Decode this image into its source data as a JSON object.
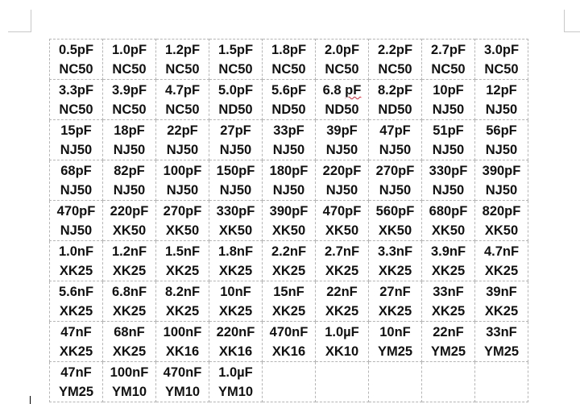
{
  "table": {
    "rows": [
      [
        [
          "0.5pF",
          "NC50"
        ],
        [
          "1.0pF",
          "NC50"
        ],
        [
          "1.2pF",
          "NC50"
        ],
        [
          "1.5pF",
          "NC50"
        ],
        [
          "1.8pF",
          "NC50"
        ],
        [
          "2.0pF",
          "NC50"
        ],
        [
          "2.2pF",
          "NC50"
        ],
        [
          "2.7pF",
          "NC50"
        ],
        [
          "3.0pF",
          "NC50"
        ]
      ],
      [
        [
          "3.3pF",
          "NC50"
        ],
        [
          "3.9pF",
          "NC50"
        ],
        [
          "4.7pF",
          "NC50"
        ],
        [
          "5.0pF",
          "ND50"
        ],
        [
          "5.6pF",
          "ND50"
        ],
        [
          "6.8 pF",
          "ND50"
        ],
        [
          "8.2pF",
          "ND50"
        ],
        [
          "10pF",
          "NJ50"
        ],
        [
          "12pF",
          "NJ50"
        ]
      ],
      [
        [
          "15pF",
          "NJ50"
        ],
        [
          "18pF",
          "NJ50"
        ],
        [
          "22pF",
          "NJ50"
        ],
        [
          "27pF",
          "NJ50"
        ],
        [
          "33pF",
          "NJ50"
        ],
        [
          "39pF",
          "NJ50"
        ],
        [
          "47pF",
          "NJ50"
        ],
        [
          "51pF",
          "NJ50"
        ],
        [
          "56pF",
          "NJ50"
        ]
      ],
      [
        [
          "68pF",
          "NJ50"
        ],
        [
          "82pF",
          "NJ50"
        ],
        [
          "100pF",
          "NJ50"
        ],
        [
          "150pF",
          "NJ50"
        ],
        [
          "180pF",
          "NJ50"
        ],
        [
          "220pF",
          "NJ50"
        ],
        [
          "270pF",
          "NJ50"
        ],
        [
          "330pF",
          "NJ50"
        ],
        [
          "390pF",
          "NJ50"
        ]
      ],
      [
        [
          "470pF",
          "NJ50"
        ],
        [
          "220pF",
          "XK50"
        ],
        [
          "270pF",
          "XK50"
        ],
        [
          "330pF",
          "XK50"
        ],
        [
          "390pF",
          "XK50"
        ],
        [
          "470pF",
          "XK50"
        ],
        [
          "560pF",
          "XK50"
        ],
        [
          "680pF",
          "XK50"
        ],
        [
          "820pF",
          "XK50"
        ]
      ],
      [
        [
          "1.0nF",
          "XK25"
        ],
        [
          "1.2nF",
          "XK25"
        ],
        [
          "1.5nF",
          "XK25"
        ],
        [
          "1.8nF",
          "XK25"
        ],
        [
          "2.2nF",
          "XK25"
        ],
        [
          "2.7nF",
          "XK25"
        ],
        [
          "3.3nF",
          "XK25"
        ],
        [
          "3.9nF",
          "XK25"
        ],
        [
          "4.7nF",
          "XK25"
        ]
      ],
      [
        [
          "5.6nF",
          "XK25"
        ],
        [
          "6.8nF",
          "XK25"
        ],
        [
          "8.2nF",
          "XK25"
        ],
        [
          "10nF",
          "XK25"
        ],
        [
          "15nF",
          "XK25"
        ],
        [
          "22nF",
          "XK25"
        ],
        [
          "27nF",
          "XK25"
        ],
        [
          "33nF",
          "XK25"
        ],
        [
          "39nF",
          "XK25"
        ]
      ],
      [
        [
          "47nF",
          "XK25"
        ],
        [
          "68nF",
          "XK25"
        ],
        [
          "100nF",
          "XK16"
        ],
        [
          "220nF",
          "XK16"
        ],
        [
          "470nF",
          "XK16"
        ],
        [
          "1.0µF",
          "XK10"
        ],
        [
          "10nF",
          "YM25"
        ],
        [
          "22nF",
          "YM25"
        ],
        [
          "33nF",
          "YM25"
        ]
      ],
      [
        [
          "47nF",
          "YM25"
        ],
        [
          "100nF",
          "YM10"
        ],
        [
          "470nF",
          "YM10"
        ],
        [
          "1.0µF",
          "YM10"
        ],
        [
          "",
          ""
        ],
        [
          "",
          ""
        ],
        [
          "",
          ""
        ],
        [
          "",
          ""
        ],
        [
          "",
          ""
        ]
      ]
    ],
    "spellcheck_flagged": "6.8 pF"
  }
}
